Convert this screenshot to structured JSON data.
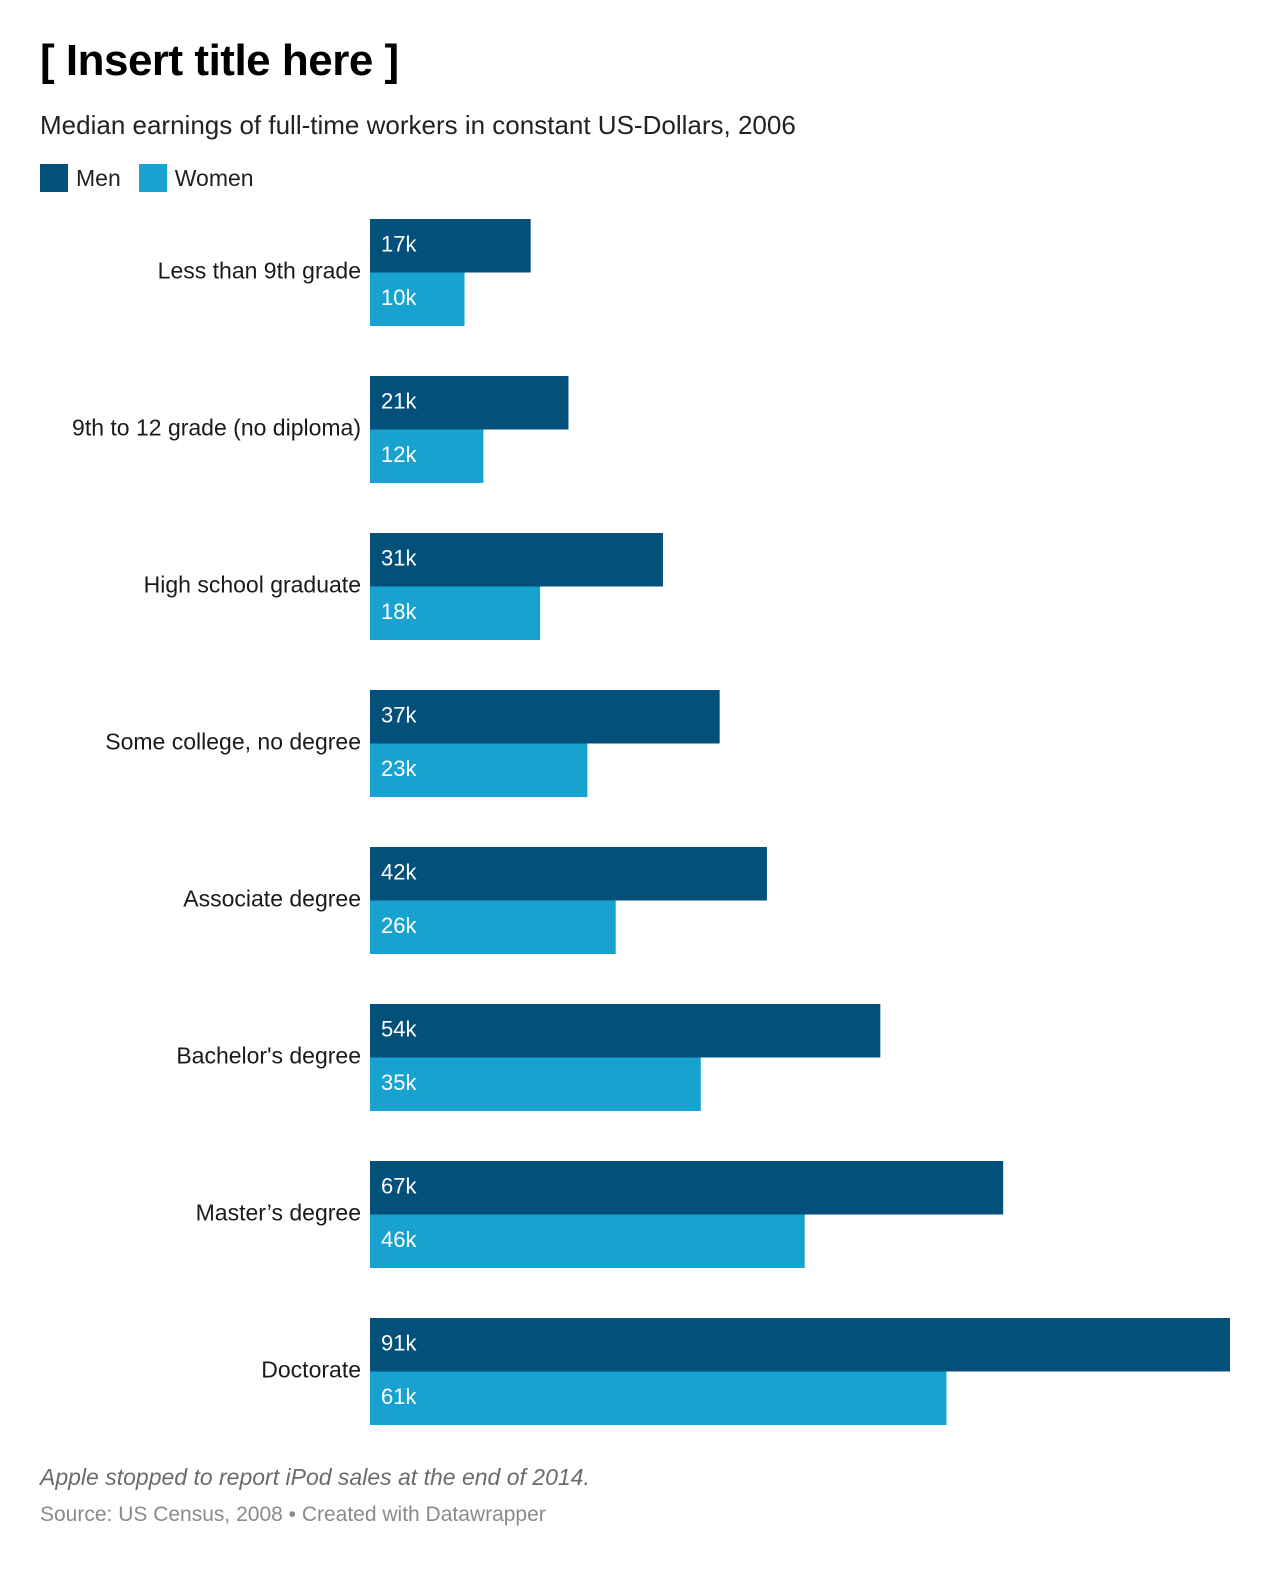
{
  "title": "[ Insert title here ]",
  "subtitle": "Median earnings of full-time workers in constant US-Dollars, 2006",
  "legend": [
    {
      "name": "Men",
      "color": "#03507a"
    },
    {
      "name": "Women",
      "color": "#18a2d0"
    }
  ],
  "note": "Apple stopped to report iPod sales at the end of 2014.",
  "source": "Source: US Census, 2008 • Created with Datawrapper",
  "chart_data": {
    "type": "bar",
    "orientation": "horizontal",
    "categories": [
      "Less than 9th grade",
      "9th to 12 grade (no diploma)",
      "High school graduate",
      "Some college, no degree",
      "Associate degree",
      "Bachelor's degree",
      "Master’s degree",
      "Doctorate"
    ],
    "series": [
      {
        "name": "Men",
        "color": "#03507a",
        "values": [
          17,
          21,
          31,
          37,
          42,
          54,
          67,
          91
        ],
        "labels": [
          "17k",
          "21k",
          "31k",
          "37k",
          "42k",
          "54k",
          "67k",
          "91k"
        ]
      },
      {
        "name": "Women",
        "color": "#18a2d0",
        "values": [
          10,
          12,
          18,
          23,
          26,
          35,
          46,
          61
        ],
        "labels": [
          "10k",
          "12k",
          "18k",
          "23k",
          "26k",
          "35k",
          "46k",
          "61k"
        ]
      }
    ],
    "unit": "thousand US-Dollars",
    "xlim": [
      0,
      91
    ],
    "grid": false,
    "legend_position": "top-left"
  }
}
